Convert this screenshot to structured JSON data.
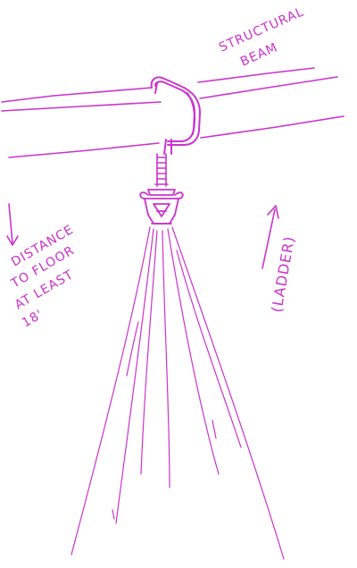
{
  "ink_color": "#cc33cc",
  "labels": {
    "beam_line1": "STRUCTURAL",
    "beam_line2": "BEAM",
    "distance_line1": "DISTANCE",
    "distance_line2": "TO FLOOR",
    "distance_line3": "AT LEAST",
    "distance_line4": "18'",
    "ladder": "(LADDER)"
  }
}
